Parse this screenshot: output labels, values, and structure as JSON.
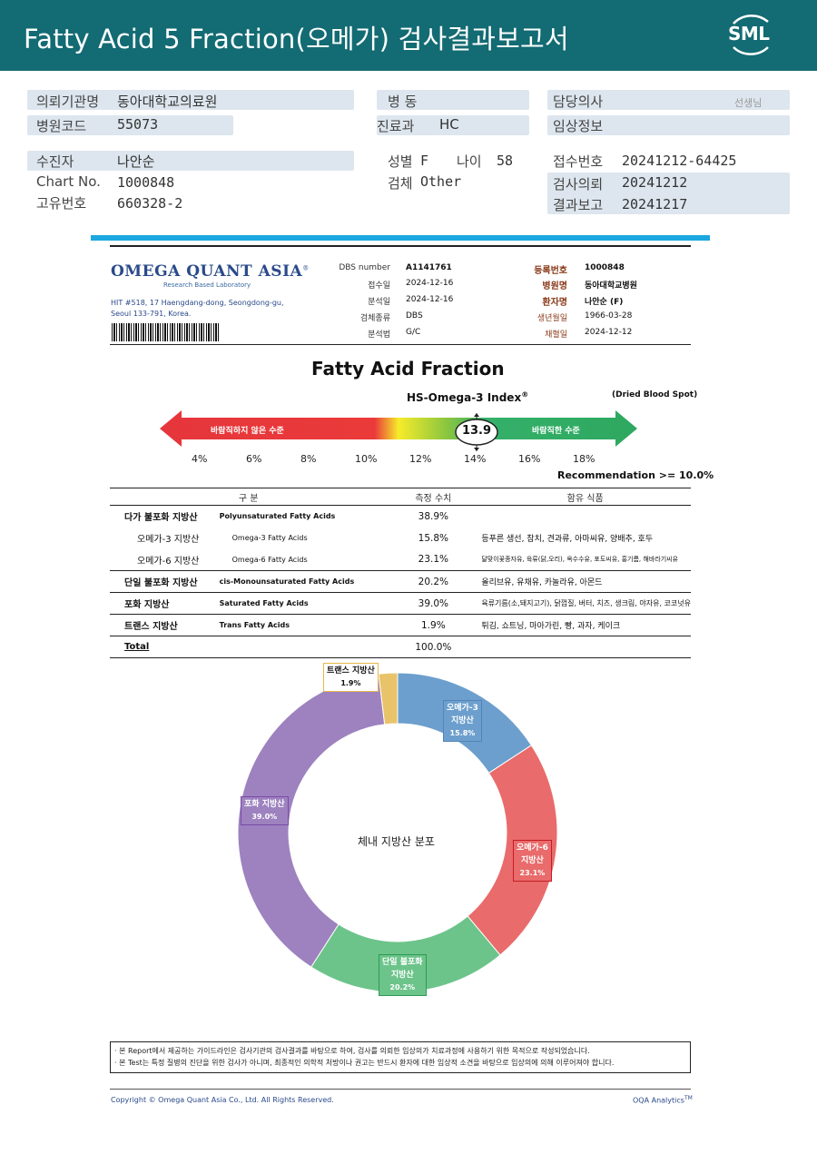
{
  "header": {
    "title": "Fatty Acid 5 Fraction(오메가) 검사결과보고서",
    "logo_text": "SML"
  },
  "info": {
    "institution_label": "의뢰기관명",
    "institution_value": "동아대학교의료원",
    "hospital_code_label": "병원코드",
    "hospital_code_value": "55073",
    "ward_label": "병    동",
    "ward_value": "",
    "dept_label": "진료과",
    "dept_value": "HC",
    "doctor_label": "담당의사",
    "doctor_suffix": "선생님",
    "clinical_label": "임상정보",
    "clinical_value": "",
    "patient_label": "수진자",
    "patient_value": "나안순",
    "chart_label": "Chart No.",
    "chart_value": "1000848",
    "unique_label": "고유번호",
    "unique_value": "660328-2",
    "sex_label": "성별",
    "sex_value": "F",
    "age_label": "나이",
    "age_value": "58",
    "specimen_label": "검체",
    "specimen_value": "Other",
    "receipt_label": "접수번호",
    "receipt_value": "20241212-64425",
    "request_label": "검사의뢰",
    "request_value": "20241212",
    "result_label": "결과보고",
    "result_value": "20241217"
  },
  "report_header": {
    "lab_name": "OMEGA QUANT ASIA",
    "lab_mark": "®",
    "lab_sub": "Research Based Laboratory",
    "address_line1": "HIT #518, 17 Haengdang-dong, Seongdong-gu,",
    "address_line2": "Seoul 133-791, Korea.",
    "dbs_label": "DBS number",
    "dbs_value": "A1141761",
    "received_label": "접수일",
    "received_value": "2024-12-16",
    "analyzed_label": "분석일",
    "analyzed_value": "2024-12-16",
    "sample_label": "검체종류",
    "sample_value": "DBS",
    "method_label": "분석법",
    "method_value": "G/C",
    "reg_label": "등록번호",
    "reg_value": "1000848",
    "hosp_label": "병원명",
    "hosp_value": "동아대학교병원",
    "patient_label": "환자명",
    "patient_value": "나안순 (F)",
    "dob_label": "생년월일",
    "dob_value": "1966-03-28",
    "collect_label": "채혈일",
    "collect_value": "2024-12-12"
  },
  "index": {
    "report_title": "Fatty Acid Fraction",
    "index_title": "HS-Omega-3 Index",
    "index_mark": "®",
    "specimen_note": "(Dried Blood Spot)",
    "undesirable_label": "바람직하지 않은 수준",
    "desirable_label": "바람직한 수준",
    "value": 13.9,
    "value_text": "13.9",
    "ticks": [
      "4%",
      "6%",
      "8%",
      "10%",
      "12%",
      "14%",
      "16%",
      "18%"
    ],
    "recommendation": "Recommendation  >= 10.0%"
  },
  "table": {
    "headers": [
      "구 분",
      "측정 수치",
      "함유 식품"
    ],
    "rows": [
      {
        "ko": "다가 불포화 지방산",
        "en": "Polyunsaturated Fatty Acids",
        "value": "38.9%",
        "food": "",
        "sub": false
      },
      {
        "ko": "오메가-3 지방산",
        "en": "Omega-3 Fatty Acids",
        "value": "15.8%",
        "food": "등푸른 생선, 참치, 견과류, 아마씨유, 양배추, 호두",
        "sub": true
      },
      {
        "ko": "오메가-6 지방산",
        "en": "Omega-6 Fatty Acids",
        "value": "23.1%",
        "food": "달맞이꽃종자유, 육류(닭,오리), 옥수수유, 포도씨유, 홍기름, 해바라기씨유",
        "sub": true
      },
      {
        "ko": "단일 불포화 지방산",
        "en": "cis-Monounsaturated Fatty Acids",
        "value": "20.2%",
        "food": "올리브유, 유채유, 카놀라유, 아몬드",
        "sub": false
      },
      {
        "ko": "포화 지방산",
        "en": "Saturated Fatty Acids",
        "value": "39.0%",
        "food": "육류기름(소,돼지고기), 닭껍질, 버터, 치즈, 생크림, 야자유, 코코넛유",
        "sub": false
      },
      {
        "ko": "트랜스 지방산",
        "en": "Trans Fatty Acids",
        "value": "1.9%",
        "food": "튀김, 쇼트닝, 마아가린, 빵, 과자, 케이크",
        "sub": false
      },
      {
        "ko": "Total",
        "en": "",
        "value": "100.0%",
        "food": "",
        "sub": false
      }
    ]
  },
  "chart_data": {
    "type": "pie",
    "title": "체내 지방산 분포",
    "slices": [
      {
        "name": "오메가-3 지방산",
        "value": 15.8,
        "label": "15.8%",
        "color": "#6c9fcd"
      },
      {
        "name": "오메가-6 지방산",
        "value": 23.1,
        "label": "23.1%",
        "color": "#e96b6b"
      },
      {
        "name": "단일 불포화 지방산",
        "value": 20.2,
        "label": "20.2%",
        "color": "#6cc48a"
      },
      {
        "name": "포화 지방산",
        "value": 39.0,
        "label": "39.0%",
        "color": "#9d82bf"
      },
      {
        "name": "트랜스 지방산",
        "value": 1.9,
        "label": "1.9%",
        "color": "#e9c36a"
      }
    ]
  },
  "donut_labels": {
    "omega3_line1": "오메가-3",
    "omega3_line2": "지방산",
    "omega3_pct": "15.8%",
    "omega6_line1": "오메가-6",
    "omega6_line2": "지방산",
    "omega6_pct": "23.1%",
    "mono_line1": "단일 불포화",
    "mono_line2": "지방산",
    "mono_pct": "20.2%",
    "sat_line1": "포화 지방산",
    "sat_pct": "39.0%",
    "trans_line1": "트랜스 지방산",
    "trans_pct": "1.9%"
  },
  "footer": {
    "disclaimer1": "· 본 Report에서 제공하는 가이드라인은 검사기관의 검사결과를 바탕으로 하여, 검사를 의뢰한 임상의가 치료과정에 사용하기 위한 목적으로 작성되었습니다.",
    "disclaimer2": "· 본 Test는 특정 질병의 진단을 위한 검사가 아니며, 최종적인 의학적 처방이나 권고는 반드시 환자에 대한 임상적 소견을 바탕으로 임상의에 의해 이루어져야 합니다.",
    "copyright": "Copyright © Omega Quant Asia Co., Ltd.  All Rights Reserved.",
    "analytics": "OQA Analytics",
    "analytics_mark": "TM"
  }
}
